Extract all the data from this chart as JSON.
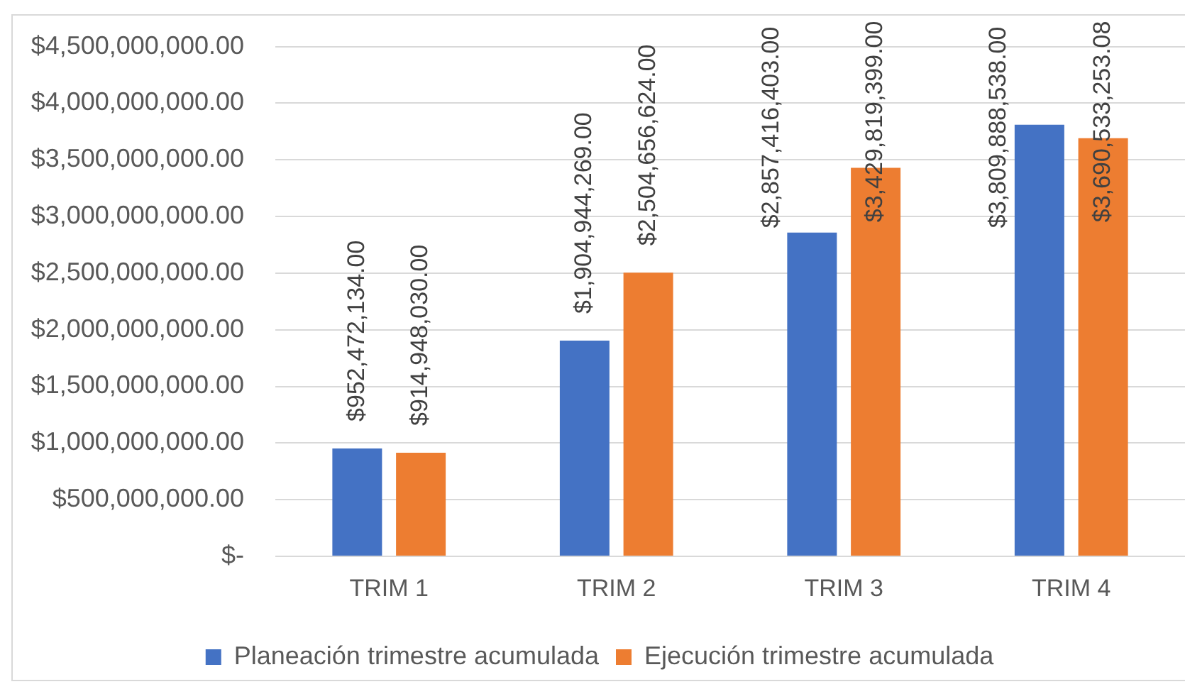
{
  "chart_data": {
    "type": "bar",
    "categories": [
      "TRIM 1",
      "TRIM 2",
      "TRIM 3",
      "TRIM 4"
    ],
    "series": [
      {
        "name": "Planeación trimestre acumulada",
        "color": "#4472c4",
        "values": [
          952472134,
          1904944269,
          2857416403,
          3809888538
        ],
        "value_labels": [
          "$952,472,134.00",
          "$1,904,944,269.00",
          "$2,857,416,403.00",
          "$3,809,888,538.00"
        ]
      },
      {
        "name": "Ejecución trimestre acumulada",
        "color": "#ed7d31",
        "values": [
          914948030,
          2504656624,
          3429819399,
          3690533253.08
        ],
        "value_labels": [
          "$914,948,030.00",
          "$2,504,656,624.00",
          "$3,429,819,399.00",
          "$3,690,533,253.08"
        ]
      }
    ],
    "ylim": [
      0,
      4500000000
    ],
    "yticks": [
      {
        "value": 0,
        "label": "$-"
      },
      {
        "value": 500000000,
        "label": "$500,000,000.00"
      },
      {
        "value": 1000000000,
        "label": "$1,000,000,000.00"
      },
      {
        "value": 1500000000,
        "label": "$1,500,000,000.00"
      },
      {
        "value": 2000000000,
        "label": "$2,000,000,000.00"
      },
      {
        "value": 2500000000,
        "label": "$2,500,000,000.00"
      },
      {
        "value": 3000000000,
        "label": "$3,000,000,000.00"
      },
      {
        "value": 3500000000,
        "label": "$3,500,000,000.00"
      },
      {
        "value": 4000000000,
        "label": "$4,000,000,000.00"
      },
      {
        "value": 4500000000,
        "label": "$4,500,000,000.00"
      }
    ],
    "grid": "y",
    "legend": "bottom"
  }
}
